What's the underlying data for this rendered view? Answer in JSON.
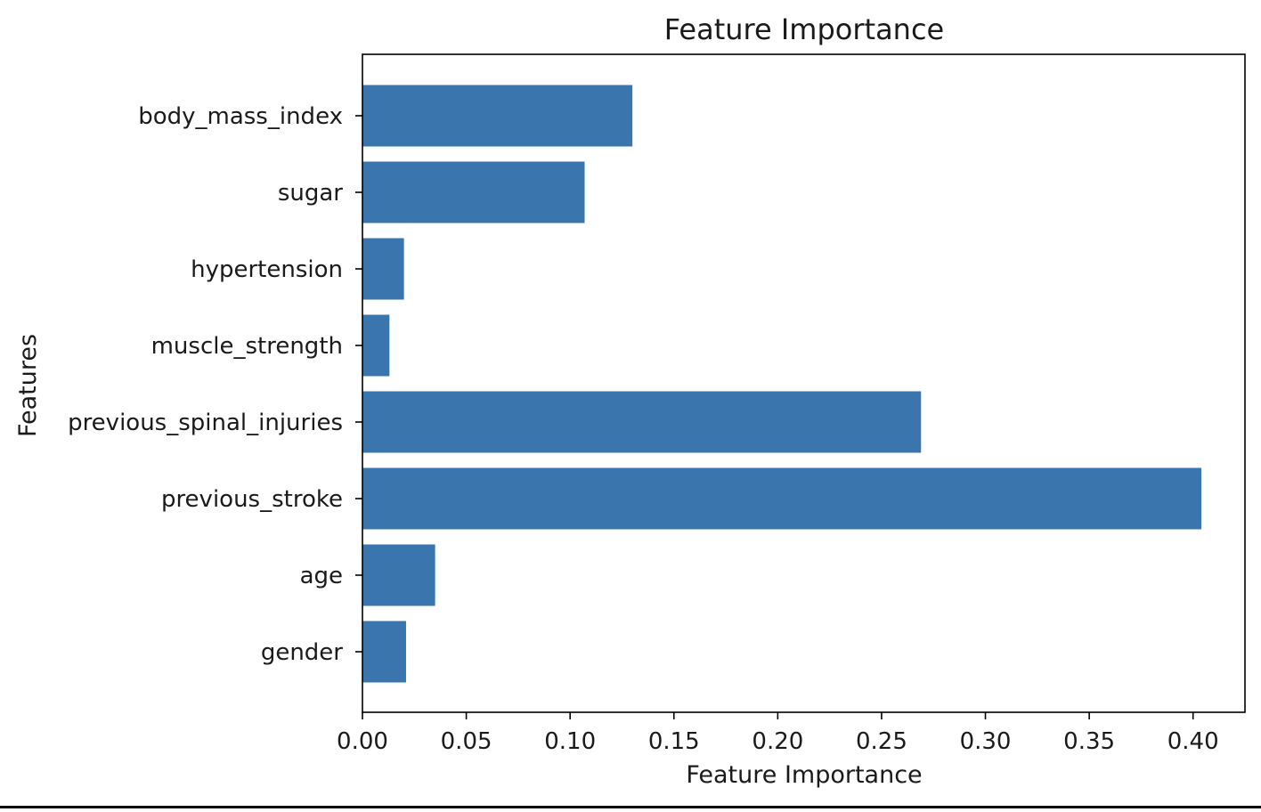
{
  "chart_data": {
    "type": "bar",
    "orientation": "horizontal",
    "title": "Feature Importance",
    "xlabel": "Feature Importance",
    "ylabel": "Features",
    "categories": [
      "gender",
      "age",
      "previous_stroke",
      "previous_spinal_injuries",
      "muscle_strength",
      "hypertension",
      "sugar",
      "body_mass_index"
    ],
    "values": [
      0.021,
      0.035,
      0.404,
      0.269,
      0.013,
      0.02,
      0.107,
      0.13
    ],
    "xlim": [
      0.0,
      0.425
    ],
    "xticks": [
      0.0,
      0.05,
      0.1,
      0.15,
      0.2,
      0.25,
      0.3,
      0.35,
      0.4
    ],
    "xtick_labels": [
      "0.00",
      "0.05",
      "0.10",
      "0.15",
      "0.20",
      "0.25",
      "0.30",
      "0.35",
      "0.40"
    ],
    "grid": false,
    "bar_color": "#3a75ad",
    "legend": "none"
  }
}
